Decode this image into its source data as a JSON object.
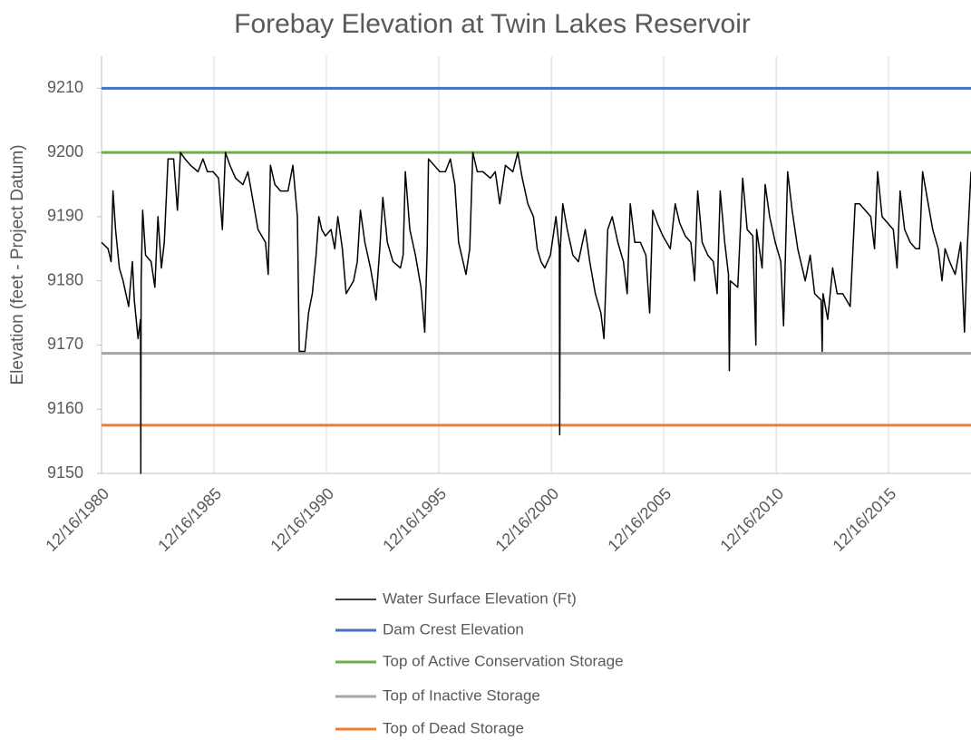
{
  "chart_data": {
    "type": "line",
    "title": "Forebay Elevation at Twin Lakes Reservoir",
    "y_label": "Elevation (feet - Project Datum)",
    "xlim": [
      "12/16/1980",
      "8/15/2019"
    ],
    "xticks": [
      "12/16/1980",
      "12/16/1985",
      "12/16/1990",
      "12/16/1995",
      "12/16/2000",
      "12/16/2005",
      "12/16/2010",
      "12/16/2015"
    ],
    "ylim": [
      9150,
      9215
    ],
    "yticks": [
      9150,
      9160,
      9170,
      9180,
      9190,
      9200,
      9210
    ],
    "grid": "x",
    "legend": "bottom",
    "series": [
      {
        "name": "Water Surface Elevation (Ft)",
        "color": "#000000",
        "x": [
          "12/16/1980",
          "4/1/1981",
          "5/20/1981",
          "6/20/1981",
          "8/1/1981",
          "10/1/1981",
          "12/1/1981",
          "3/1/1982",
          "5/1/1982",
          "6/1/1982",
          "8/1/1982",
          "9/10/1982",
          "9/15/1982",
          "9/20/1982",
          "10/15/1982",
          "12/1/1982",
          "3/1/1983",
          "5/1/1983",
          "6/20/1983",
          "8/15/1983",
          "10/1/1983",
          "12/1/1983",
          "3/1/1984",
          "5/1/1984",
          "6/20/1984",
          "9/1/1984",
          "12/1/1984",
          "4/1/1985",
          "6/20/1985",
          "9/1/1985",
          "12/1/1985",
          "3/1/1986",
          "5/1/1986",
          "6/20/1986",
          "9/1/1986",
          "12/1/1986",
          "4/1/1987",
          "6/20/1987",
          "9/1/1987",
          "12/1/1987",
          "4/1/1988",
          "5/15/1988",
          "6/20/1988",
          "9/1/1988",
          "12/1/1988",
          "4/1/1989",
          "6/20/1989",
          "9/1/1989",
          "10/1/1989",
          "1/1/1990",
          "3/1/1990",
          "5/1/1990",
          "7/1/1990",
          "8/15/1990",
          "10/1/1990",
          "12/1/1990",
          "3/1/1991",
          "5/1/1991",
          "6/20/1991",
          "9/1/1991",
          "11/1/1991",
          "3/1/1992",
          "5/1/1992",
          "6/20/1992",
          "9/1/1992",
          "12/1/1992",
          "3/1/1993",
          "5/1/1993",
          "6/20/1993",
          "9/1/1993",
          "12/1/1993",
          "4/1/1994",
          "5/15/1994",
          "6/20/1994",
          "9/1/1994",
          "12/1/1994",
          "3/1/1995",
          "5/1/1995",
          "6/10/1995",
          "7/1/1995",
          "10/1/1995",
          "1/1/1996",
          "4/1/1996",
          "6/20/1996",
          "9/1/1996",
          "11/1/1996",
          "3/1/1997",
          "5/1/1997",
          "6/20/1997",
          "9/1/1997",
          "12/1/1997",
          "4/1/1998",
          "6/20/1998",
          "9/1/1998",
          "12/1/1998",
          "4/1/1999",
          "6/20/1999",
          "9/1/1999",
          "12/1/1999",
          "3/1/2000",
          "5/1/2000",
          "7/1/2000",
          "9/1/2000",
          "12/1/2000",
          "3/1/2001",
          "4/25/2001",
          "5/1/2001",
          "5/10/2001",
          "6/20/2001",
          "9/1/2001",
          "12/1/2001",
          "3/1/2002",
          "6/20/2002",
          "9/1/2002",
          "12/1/2002",
          "3/1/2003",
          "4/20/2003",
          "6/20/2003",
          "9/1/2003",
          "12/1/2003",
          "3/1/2004",
          "5/1/2004",
          "6/20/2004",
          "9/1/2004",
          "12/1/2004",
          "3/1/2005",
          "5/1/2005",
          "6/20/2005",
          "9/1/2005",
          "12/1/2005",
          "4/1/2006",
          "6/20/2006",
          "9/1/2006",
          "12/1/2006",
          "3/1/2007",
          "5/1/2007",
          "6/20/2007",
          "9/1/2007",
          "12/1/2007",
          "3/1/2008",
          "5/1/2008",
          "6/20/2008",
          "9/1/2008",
          "11/1/2008",
          "11/15/2008",
          "12/1/2008",
          "4/1/2009",
          "6/20/2009",
          "9/1/2009",
          "12/1/2009",
          "1/20/2010",
          "2/1/2010",
          "5/1/2010",
          "6/20/2010",
          "9/1/2010",
          "12/1/2010",
          "3/1/2011",
          "4/15/2011",
          "6/20/2011",
          "9/1/2011",
          "12/1/2011",
          "4/1/2012",
          "6/20/2012",
          "9/1/2012",
          "12/15/2012",
          "1/1/2013",
          "1/15/2013",
          "4/1/2013",
          "6/20/2013",
          "9/1/2013",
          "12/1/2013",
          "4/1/2014",
          "6/20/2014",
          "9/1/2014",
          "12/1/2014",
          "3/1/2015",
          "5/1/2015",
          "6/20/2015",
          "9/1/2015",
          "12/1/2015",
          "3/1/2016",
          "5/1/2016",
          "6/20/2016",
          "9/1/2016",
          "12/1/2016",
          "3/1/2017",
          "5/1/2017",
          "6/20/2017",
          "9/1/2017",
          "12/1/2017",
          "3/1/2018",
          "5/1/2018",
          "6/20/2018",
          "9/1/2018",
          "12/1/2018",
          "3/1/2019",
          "5/1/2019",
          "6/15/2019",
          "8/15/2019"
        ],
        "values": [
          9186,
          9185,
          9183,
          9194,
          9188,
          9182,
          9180,
          9176,
          9183,
          9177,
          9171,
          9174,
          9150,
          9180,
          9191,
          9184,
          9183,
          9179,
          9190,
          9182,
          9186,
          9199,
          9199,
          9191,
          9200,
          9199,
          9198,
          9197,
          9199,
          9197,
          9197,
          9196,
          9188,
          9200,
          9198,
          9196,
          9195,
          9197,
          9193,
          9188,
          9186,
          9181,
          9198,
          9195,
          9194,
          9194,
          9198,
          9190,
          9169,
          9169,
          9175,
          9178,
          9184,
          9190,
          9188,
          9187,
          9188,
          9185,
          9190,
          9185,
          9178,
          9180,
          9183,
          9191,
          9186,
          9182,
          9177,
          9185,
          9193,
          9186,
          9183,
          9182,
          9184,
          9197,
          9188,
          9184,
          9179,
          9172,
          9185,
          9199,
          9198,
          9197,
          9197,
          9199,
          9195,
          9186,
          9181,
          9185,
          9200,
          9197,
          9197,
          9196,
          9197,
          9192,
          9198,
          9197,
          9200,
          9196,
          9192,
          9190,
          9185,
          9183,
          9182,
          9184,
          9190,
          9185,
          9156,
          9185,
          9192,
          9188,
          9184,
          9183,
          9188,
          9183,
          9178,
          9175,
          9171,
          9188,
          9190,
          9186,
          9183,
          9178,
          9192,
          9186,
          9186,
          9184,
          9175,
          9191,
          9189,
          9187,
          9185,
          9192,
          9189,
          9187,
          9186,
          9180,
          9194,
          9186,
          9184,
          9183,
          9178,
          9194,
          9186,
          9181,
          9166,
          9180,
          9179,
          9196,
          9188,
          9187,
          9170,
          9188,
          9182,
          9195,
          9190,
          9186,
          9183,
          9173,
          9197,
          9191,
          9185,
          9180,
          9184,
          9178,
          9177,
          9169,
          9178,
          9174,
          9182,
          9178,
          9178,
          9176,
          9192,
          9192,
          9191,
          9190,
          9185,
          9197,
          9190,
          9189,
          9188,
          9182,
          9194,
          9188,
          9186,
          9185,
          9185,
          9197,
          9193,
          9188,
          9185,
          9180,
          9185,
          9183,
          9181,
          9186,
          9172,
          9185,
          9197
        ]
      },
      {
        "name": "Dam Crest Elevation",
        "color": "#4472c4",
        "x": [
          "12/16/1980",
          "8/15/2019"
        ],
        "values": [
          9210,
          9210
        ]
      },
      {
        "name": "Top of Active Conservation Storage",
        "color": "#70ad47",
        "x": [
          "12/16/1980",
          "8/15/2019"
        ],
        "values": [
          9200,
          9200
        ]
      },
      {
        "name": "Top of Inactive Storage",
        "color": "#a5a5a5",
        "x": [
          "12/16/1980",
          "8/15/2019"
        ],
        "values": [
          9168.7,
          9168.7
        ]
      },
      {
        "name": "Top of Dead Storage",
        "color": "#ed7d31",
        "x": [
          "12/16/1980",
          "8/15/2019"
        ],
        "values": [
          9157.5,
          9157.5
        ]
      }
    ]
  }
}
